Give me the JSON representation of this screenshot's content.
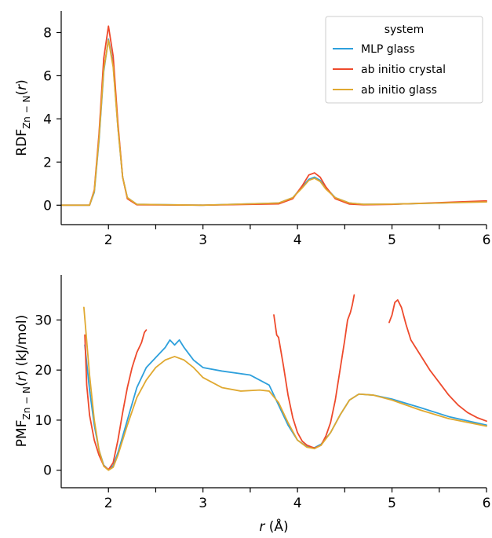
{
  "colors": {
    "mlp_glass": "#2ea0dc",
    "ab_initio_crystal": "#ee4a2c",
    "ab_initio_glass": "#e0a931"
  },
  "legend": {
    "title": "system",
    "entries": [
      "MLP glass",
      "ab initio crystal",
      "ab initio glass"
    ]
  },
  "chart_data": [
    {
      "type": "line",
      "ylabel": {
        "main": "RDF",
        "sub": "Zn − N",
        "paren_open": "(",
        "var": "r",
        "paren_close": ")"
      },
      "xlim": [
        1.5,
        6.0
      ],
      "ylim": [
        -0.9,
        9.0
      ],
      "xticks": [
        "2",
        "3",
        "4",
        "5",
        "6"
      ],
      "yticks": [
        "0",
        "2",
        "4",
        "6",
        "8"
      ],
      "grid": false,
      "legend_position": "top-right",
      "series": [
        {
          "name": "MLP glass",
          "x": [
            1.5,
            1.8,
            1.85,
            1.9,
            1.95,
            2.0,
            2.05,
            2.1,
            2.15,
            2.2,
            2.3,
            3.0,
            3.8,
            3.95,
            4.05,
            4.12,
            4.18,
            4.24,
            4.3,
            4.4,
            4.55,
            4.7,
            5.0,
            5.5,
            6.0
          ],
          "y": [
            0,
            0,
            0.6,
            3.0,
            6.2,
            7.7,
            6.5,
            3.6,
            1.3,
            0.35,
            0.04,
            0.0,
            0.1,
            0.35,
            0.85,
            1.2,
            1.3,
            1.15,
            0.8,
            0.35,
            0.1,
            0.04,
            0.05,
            0.1,
            0.17
          ]
        },
        {
          "name": "ab initio crystal",
          "x": [
            1.5,
            1.8,
            1.85,
            1.9,
            1.95,
            2.0,
            2.05,
            2.1,
            2.15,
            2.2,
            2.3,
            3.0,
            3.8,
            3.95,
            4.05,
            4.12,
            4.18,
            4.24,
            4.3,
            4.4,
            4.55,
            4.7,
            5.0,
            5.5,
            6.0
          ],
          "y": [
            0,
            0,
            0.7,
            3.3,
            6.8,
            8.3,
            6.9,
            3.8,
            1.3,
            0.3,
            0.02,
            0.0,
            0.06,
            0.3,
            0.9,
            1.4,
            1.5,
            1.3,
            0.85,
            0.3,
            0.05,
            0.02,
            0.04,
            0.12,
            0.2
          ]
        },
        {
          "name": "ab initio glass",
          "x": [
            1.5,
            1.8,
            1.85,
            1.9,
            1.95,
            2.0,
            2.05,
            2.1,
            2.15,
            2.2,
            2.3,
            3.0,
            3.8,
            3.95,
            4.05,
            4.12,
            4.18,
            4.24,
            4.3,
            4.4,
            4.55,
            4.7,
            5.0,
            5.5,
            6.0
          ],
          "y": [
            0,
            0,
            0.65,
            3.1,
            6.3,
            7.65,
            6.4,
            3.6,
            1.3,
            0.35,
            0.04,
            0.0,
            0.1,
            0.35,
            0.8,
            1.15,
            1.25,
            1.1,
            0.75,
            0.35,
            0.1,
            0.04,
            0.05,
            0.1,
            0.15
          ]
        }
      ]
    },
    {
      "type": "line",
      "ylabel": {
        "main": "PMF",
        "sub": "Zn − N",
        "paren_open": "(",
        "var": "r",
        "paren_close": ") (kJ/mol)"
      },
      "xlabel": {
        "var": "r",
        "unit": " (Å)"
      },
      "xlim": [
        1.5,
        6.0
      ],
      "ylim": [
        -3.5,
        39.0
      ],
      "xticks": [
        "2",
        "3",
        "4",
        "5",
        "6"
      ],
      "yticks": [
        "0",
        "10",
        "20",
        "30"
      ],
      "grid": false,
      "series": [
        {
          "name": "MLP glass",
          "x": [
            1.75,
            1.8,
            1.85,
            1.9,
            1.95,
            2.0,
            2.05,
            2.1,
            2.2,
            2.3,
            2.4,
            2.5,
            2.6,
            2.65,
            2.7,
            2.75,
            2.8,
            2.9,
            3.0,
            3.2,
            3.5,
            3.7,
            3.8,
            3.9,
            4.0,
            4.1,
            4.18,
            4.25,
            4.35,
            4.45,
            4.55,
            4.65,
            4.8,
            5.0,
            5.3,
            5.6,
            6.0
          ],
          "y": [
            25.0,
            16.0,
            9.0,
            4.0,
            1.0,
            0.1,
            0.9,
            3.5,
            10.0,
            16.5,
            20.5,
            22.5,
            24.5,
            26.0,
            25.0,
            26.0,
            24.5,
            22.0,
            20.5,
            19.8,
            19.0,
            17.0,
            13.0,
            9.0,
            6.0,
            4.7,
            4.5,
            5.2,
            7.5,
            11.0,
            14.0,
            15.2,
            15.0,
            14.2,
            12.5,
            10.7,
            9.0
          ]
        },
        {
          "name": "ab initio crystal",
          "x": [
            1.75,
            1.77,
            1.8,
            1.85,
            1.9,
            1.95,
            2.0,
            2.05,
            2.1,
            2.15,
            2.2,
            2.25,
            2.3,
            2.35,
            2.38,
            2.4,
            null,
            3.75,
            3.78,
            3.8,
            3.85,
            3.9,
            3.95,
            4.0,
            4.05,
            4.1,
            4.18,
            4.25,
            4.3,
            4.35,
            4.4,
            4.45,
            4.5,
            4.53,
            4.56,
            4.58,
            4.6,
            null,
            4.97,
            5.0,
            5.03,
            5.06,
            5.1,
            5.15,
            5.2,
            5.3,
            5.4,
            5.5,
            5.6,
            5.7,
            5.8,
            5.9,
            6.0
          ],
          "y": [
            27.0,
            17.0,
            11.0,
            6.0,
            3.0,
            0.9,
            0.1,
            1.5,
            6.0,
            11.5,
            16.5,
            20.5,
            23.5,
            25.5,
            27.5,
            28.0,
            null,
            31.0,
            27.0,
            26.5,
            21.0,
            15.0,
            10.5,
            7.5,
            5.8,
            5.0,
            4.4,
            5.0,
            6.8,
            9.5,
            14.0,
            20.0,
            26.0,
            30.0,
            31.5,
            33.0,
            35.0,
            null,
            29.5,
            31.0,
            33.5,
            34.0,
            32.5,
            29.0,
            26.0,
            23.0,
            20.0,
            17.5,
            15.0,
            13.0,
            11.5,
            10.5,
            9.8
          ]
        },
        {
          "name": "ab initio glass",
          "x": [
            1.74,
            1.8,
            1.85,
            1.9,
            1.95,
            2.0,
            2.05,
            2.1,
            2.2,
            2.3,
            2.4,
            2.5,
            2.6,
            2.7,
            2.8,
            2.9,
            3.0,
            3.2,
            3.4,
            3.6,
            3.7,
            3.8,
            3.9,
            4.0,
            4.1,
            4.18,
            4.25,
            4.35,
            4.45,
            4.55,
            4.65,
            4.8,
            5.0,
            5.3,
            5.6,
            6.0
          ],
          "y": [
            32.5,
            19.0,
            10.0,
            4.0,
            0.8,
            0.0,
            0.6,
            3.0,
            9.0,
            14.5,
            18.0,
            20.5,
            22.0,
            22.7,
            22.0,
            20.5,
            18.5,
            16.5,
            15.8,
            16.0,
            15.8,
            13.5,
            9.5,
            6.0,
            4.6,
            4.3,
            5.0,
            7.5,
            11.0,
            14.0,
            15.2,
            15.0,
            14.0,
            12.0,
            10.3,
            8.8
          ]
        }
      ]
    }
  ]
}
